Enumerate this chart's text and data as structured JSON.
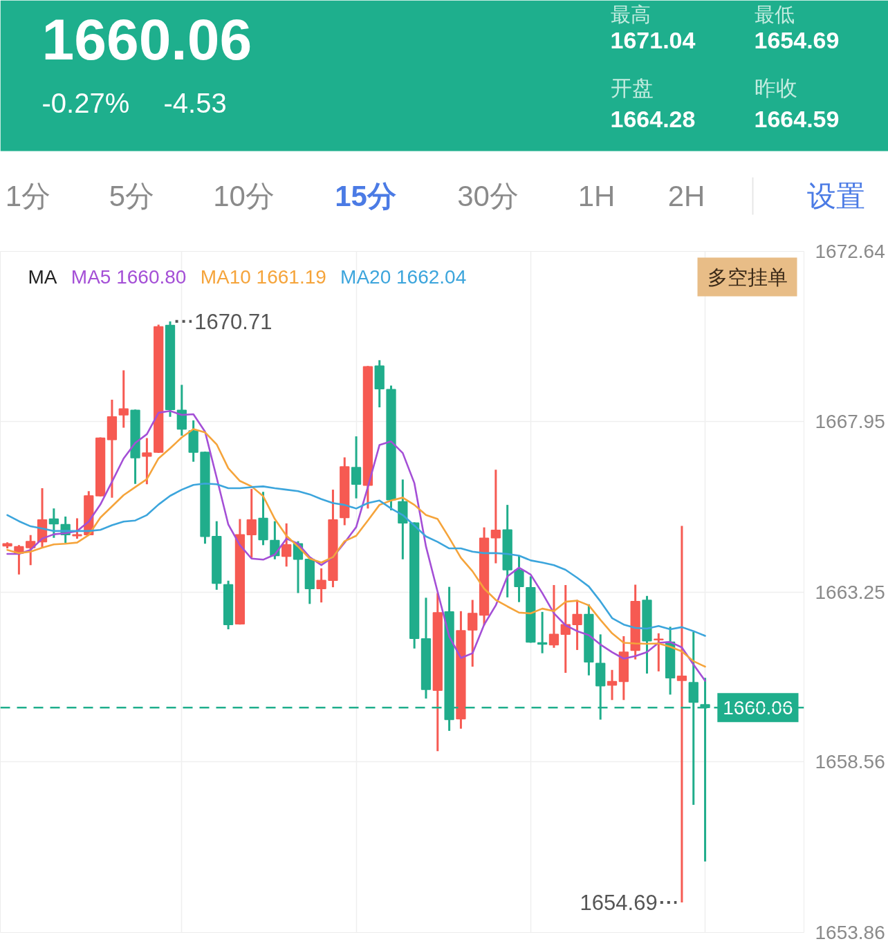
{
  "chart_data": {
    "type": "candlestick",
    "title": "1660.06",
    "legend_title": "MA",
    "categories": [
      null,
      null,
      null,
      null,
      null,
      null,
      null,
      null,
      null,
      null,
      null,
      null,
      null,
      null,
      null,
      null,
      null,
      null,
      null,
      null,
      null,
      null,
      null,
      null,
      null,
      null,
      null,
      null,
      null,
      null,
      null,
      null,
      null,
      null,
      null,
      null,
      null,
      null,
      null,
      null,
      null,
      null,
      null,
      null,
      null,
      null,
      null,
      null,
      null,
      null,
      null,
      null,
      null,
      null,
      null,
      null,
      null,
      null,
      null,
      null,
      null
    ],
    "ohlc": [
      [
        1664.52,
        1664.62,
        1664.45,
        1664.58
      ],
      [
        1664.32,
        1664.54,
        1663.73,
        1664.5
      ],
      [
        1664.47,
        1664.82,
        1663.99,
        1664.64
      ],
      [
        1664.63,
        1666.11,
        1664.47,
        1665.24
      ],
      [
        1665.26,
        1665.55,
        1664.74,
        1665.13
      ],
      [
        1665.11,
        1665.33,
        1664.6,
        1664.83
      ],
      [
        1664.8,
        1665.28,
        1664.72,
        1664.83
      ],
      [
        1664.83,
        1666.03,
        1664.82,
        1665.9
      ],
      [
        1665.9,
        1667.51,
        1665.88,
        1667.49
      ],
      [
        1667.45,
        1668.55,
        1665.85,
        1668.08
      ],
      [
        1668.13,
        1669.36,
        1667.78,
        1668.3
      ],
      [
        1668.26,
        1668.28,
        1666.23,
        1666.95
      ],
      [
        1666.99,
        1667.49,
        1666.22,
        1667.08
      ],
      [
        1667.1,
        1670.62,
        1667.08,
        1670.56
      ],
      [
        1670.6,
        1670.71,
        1668.08,
        1668.28
      ],
      [
        1668.26,
        1668.96,
        1667.56,
        1667.74
      ],
      [
        1667.69,
        1667.98,
        1666.84,
        1667.1
      ],
      [
        1667.1,
        1667.12,
        1664.58,
        1664.78
      ],
      [
        1664.78,
        1665.2,
        1663.31,
        1663.49
      ],
      [
        1663.45,
        1663.56,
        1662.22,
        1662.35
      ],
      [
        1662.37,
        1665.26,
        1662.35,
        1664.83
      ],
      [
        1664.83,
        1666.09,
        1664.19,
        1665.24
      ],
      [
        1665.28,
        1666.01,
        1664.54,
        1664.69
      ],
      [
        1664.67,
        1665.2,
        1664.15,
        1664.25
      ],
      [
        1664.23,
        1665.14,
        1663.95,
        1664.55
      ],
      [
        1664.58,
        1664.65,
        1663.22,
        1664.15
      ],
      [
        1664.15,
        1664.17,
        1662.92,
        1663.34
      ],
      [
        1663.34,
        1663.9,
        1662.96,
        1663.57
      ],
      [
        1663.57,
        1666.07,
        1663.38,
        1665.24
      ],
      [
        1665.3,
        1666.96,
        1665.09,
        1666.7
      ],
      [
        1666.68,
        1667.54,
        1665.83,
        1666.22
      ],
      [
        1666.19,
        1669.48,
        1665.55,
        1669.46
      ],
      [
        1669.48,
        1669.64,
        1668.34,
        1668.85
      ],
      [
        1668.83,
        1668.94,
        1665.5,
        1665.79
      ],
      [
        1665.74,
        1666.35,
        1664.15,
        1665.15
      ],
      [
        1665.15,
        1665.17,
        1661.69,
        1661.97
      ],
      [
        1661.96,
        1663.09,
        1660.31,
        1660.56
      ],
      [
        1660.54,
        1663.22,
        1658.86,
        1662.68
      ],
      [
        1662.7,
        1663.39,
        1659.42,
        1659.73
      ],
      [
        1659.75,
        1662.72,
        1659.48,
        1662.18
      ],
      [
        1662.2,
        1663.03,
        1661.19,
        1662.66
      ],
      [
        1662.61,
        1665.03,
        1662.33,
        1664.73
      ],
      [
        1664.74,
        1666.62,
        1664.04,
        1664.95
      ],
      [
        1664.96,
        1665.65,
        1663.1,
        1663.86
      ],
      [
        1663.85,
        1664.26,
        1662.97,
        1663.4
      ],
      [
        1663.37,
        1663.68,
        1661.85,
        1661.87
      ],
      [
        1661.85,
        1662.7,
        1661.56,
        1661.81
      ],
      [
        1661.79,
        1663.44,
        1661.71,
        1662.08
      ],
      [
        1662.08,
        1663.44,
        1661.02,
        1662.35
      ],
      [
        1662.35,
        1663.03,
        1661.65,
        1662.63
      ],
      [
        1662.63,
        1662.91,
        1660.95,
        1661.32
      ],
      [
        1661.28,
        1662.08,
        1659.73,
        1660.66
      ],
      [
        1660.68,
        1661.1,
        1660.27,
        1660.78
      ],
      [
        1660.78,
        1662.03,
        1660.27,
        1661.59
      ],
      [
        1661.64,
        1663.45,
        1661.39,
        1662.99
      ],
      [
        1663.02,
        1663.14,
        1661.0,
        1661.9
      ],
      [
        1661.93,
        1662.11,
        1661.06,
        1661.95
      ],
      [
        1661.87,
        1662.29,
        1660.42,
        1660.88
      ],
      [
        1660.81,
        1665.07,
        1654.69,
        1660.93
      ],
      [
        1660.75,
        1662.15,
        1657.38,
        1660.21
      ],
      [
        1660.14,
        1660.88,
        1655.82,
        1660.06
      ]
    ],
    "colors": [
      "#f65a52",
      "#f65a52",
      "#f65a52",
      "#f65a52",
      "#20ad8b",
      "#20ad8b",
      "#f65a52",
      "#f65a52",
      "#f65a52",
      "#f65a52",
      "#f65a52",
      "#20ad8b",
      "#f65a52",
      "#f65a52",
      "#20ad8b",
      "#20ad8b",
      "#20ad8b",
      "#20ad8b",
      "#20ad8b",
      "#20ad8b",
      "#f65a52",
      "#f65a52",
      "#20ad8b",
      "#20ad8b",
      "#f65a52",
      "#20ad8b",
      "#20ad8b",
      "#f65a52",
      "#f65a52",
      "#f65a52",
      "#20ad8b",
      "#f65a52",
      "#20ad8b",
      "#20ad8b",
      "#20ad8b",
      "#20ad8b",
      "#20ad8b",
      "#f65a52",
      "#20ad8b",
      "#f65a52",
      "#f65a52",
      "#f65a52",
      "#f65a52",
      "#20ad8b",
      "#20ad8b",
      "#20ad8b",
      "#20ad8b",
      "#f65a52",
      "#f65a52",
      "#f65a52",
      "#20ad8b",
      "#20ad8b",
      "#f65a52",
      "#f65a52",
      "#f65a52",
      "#20ad8b",
      "#f65a52",
      "#20ad8b",
      "#f65a52",
      "#20ad8b",
      "#20ad8b"
    ],
    "series": [
      {
        "name": "MA5 1660.80",
        "type": "line",
        "color": "#a44fd6",
        "values": [
          1664.3,
          1664.3,
          1664.41,
          1664.72,
          1664.84,
          1664.87,
          1664.93,
          1665.19,
          1665.66,
          1666.29,
          1666.93,
          1667.36,
          1667.6,
          1668.19,
          1668.24,
          1668.13,
          1668.15,
          1667.67,
          1666.4,
          1665.11,
          1664.54,
          1664.17,
          1664.14,
          1664.28,
          1664.72,
          1664.58,
          1664.21,
          1663.99,
          1664.21,
          1664.61,
          1665.04,
          1666.14,
          1667.3,
          1667.4,
          1667.08,
          1666.25,
          1664.5,
          1663.25,
          1662.02,
          1661.43,
          1661.56,
          1662.35,
          1662.88,
          1663.68,
          1663.92,
          1663.73,
          1663.22,
          1662.66,
          1662.33,
          1662.17,
          1662.06,
          1661.8,
          1661.59,
          1661.41,
          1661.48,
          1661.59,
          1661.85,
          1661.87,
          1661.72,
          1661.25,
          1660.8
        ]
      },
      {
        "name": "MA10 1661.19",
        "type": "line",
        "color": "#f5a43b",
        "values": [
          1664.41,
          1664.32,
          1664.36,
          1664.47,
          1664.56,
          1664.58,
          1664.61,
          1664.82,
          1665.3,
          1665.61,
          1665.92,
          1666.14,
          1666.36,
          1666.93,
          1667.21,
          1667.51,
          1667.74,
          1667.65,
          1667.32,
          1666.66,
          1666.31,
          1666.16,
          1665.89,
          1665.26,
          1664.8,
          1664.5,
          1664.17,
          1664.06,
          1664.21,
          1664.65,
          1664.8,
          1665.22,
          1665.65,
          1665.77,
          1665.85,
          1665.65,
          1665.37,
          1665.26,
          1664.74,
          1664.19,
          1663.82,
          1663.34,
          1663.03,
          1662.85,
          1662.68,
          1662.66,
          1662.79,
          1662.72,
          1662.98,
          1663.01,
          1662.88,
          1662.48,
          1662.11,
          1661.85,
          1661.83,
          1661.82,
          1661.83,
          1661.74,
          1661.61,
          1661.34,
          1661.19
        ]
      },
      {
        "name": "MA20 1662.04",
        "type": "line",
        "color": "#3ca5dc",
        "values": [
          1665.37,
          1665.2,
          1665.06,
          1665.0,
          1664.93,
          1664.93,
          1664.93,
          1664.93,
          1664.96,
          1665.09,
          1665.19,
          1665.22,
          1665.37,
          1665.66,
          1665.9,
          1666.07,
          1666.2,
          1666.24,
          1666.22,
          1666.11,
          1666.11,
          1666.14,
          1666.16,
          1666.11,
          1666.07,
          1666.03,
          1665.94,
          1665.81,
          1665.7,
          1665.65,
          1665.55,
          1665.7,
          1665.77,
          1665.55,
          1665.37,
          1665.08,
          1664.78,
          1664.63,
          1664.45,
          1664.45,
          1664.36,
          1664.32,
          1664.32,
          1664.3,
          1664.25,
          1664.12,
          1664.06,
          1663.99,
          1663.86,
          1663.64,
          1663.4,
          1662.99,
          1662.53,
          1662.35,
          1662.26,
          1662.24,
          1662.31,
          1662.22,
          1662.28,
          1662.17,
          1662.04
        ]
      }
    ],
    "ylim": [
      1653.86,
      1672.64
    ],
    "yticks": [
      1653.86,
      1658.56,
      1663.25,
      1667.95,
      1672.64
    ],
    "ref_lines": [
      {
        "axis": "y",
        "value": 1660.06,
        "color": "#1fae8c",
        "line_style": "dashed"
      }
    ],
    "annotations": [
      "-0.27%",
      "-4.53",
      "最高",
      "1671.04",
      "最低",
      "1654.69",
      "开盘",
      "1664.28",
      "昨收",
      "1664.59",
      "1分",
      "5分",
      "10分",
      "15分",
      "30分",
      "1H",
      "2H",
      "设置",
      "多空挂单",
      "1670.71",
      "1654.69",
      {
        "text": "1660.06",
        "y": 1660.06
      }
    ],
    "grid": true,
    "legend": "top left",
    "tick_labels": "y"
  }
}
